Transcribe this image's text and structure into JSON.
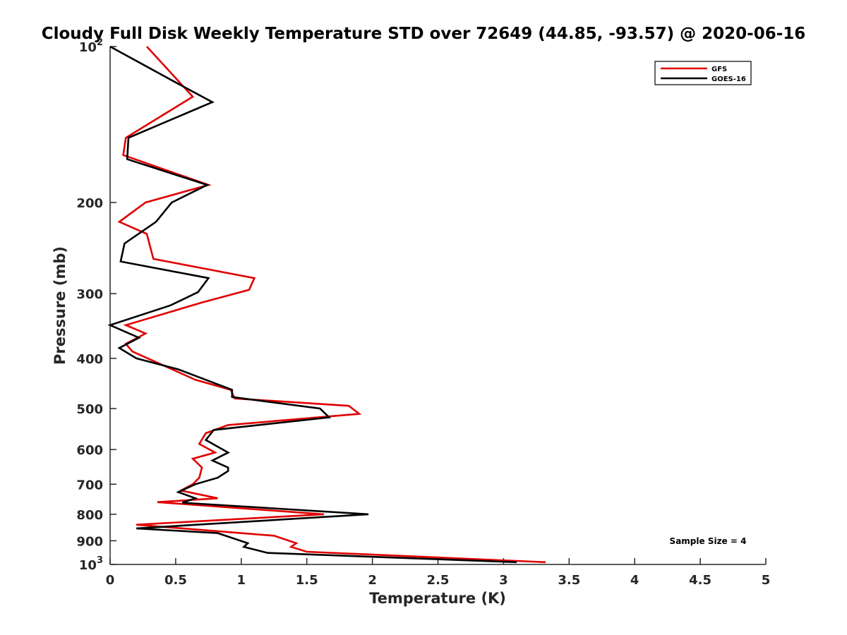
{
  "chart_data": {
    "type": "line",
    "title": "Cloudy Full Disk Weekly Temperature STD over 72649 (44.85, -93.57) @ 2020-06-16",
    "xlabel": "Temperature (K)",
    "ylabel": "Pressure (mb)",
    "xlim": [
      0,
      5
    ],
    "ylim": [
      100,
      1000
    ],
    "y_scale": "log",
    "y_reversed": true,
    "x_ticks": [
      "0",
      "0.5",
      "1",
      "1.5",
      "2",
      "2.5",
      "3",
      "3.5",
      "4",
      "4.5",
      "5"
    ],
    "y_ticks": [
      {
        "value": 100,
        "base": "10",
        "exp": "2"
      },
      {
        "value": 200,
        "label": "200"
      },
      {
        "value": 300,
        "label": "300"
      },
      {
        "value": 400,
        "label": "400"
      },
      {
        "value": 500,
        "label": "500"
      },
      {
        "value": 600,
        "label": "600"
      },
      {
        "value": 700,
        "label": "700"
      },
      {
        "value": 800,
        "label": "800"
      },
      {
        "value": 900,
        "label": "900"
      },
      {
        "value": 1000,
        "base": "10",
        "exp": "3"
      }
    ],
    "legend_position": "top-right",
    "annotation": "Sample Size = 4",
    "series": [
      {
        "name": "GFS",
        "color": "#e00000",
        "points": [
          [
            0.28,
            100
          ],
          [
            0.63,
            125
          ],
          [
            0.12,
            150
          ],
          [
            0.1,
            162
          ],
          [
            0.75,
            185
          ],
          [
            0.27,
            200
          ],
          [
            0.07,
            218
          ],
          [
            0.28,
            230
          ],
          [
            0.33,
            257
          ],
          [
            1.1,
            280
          ],
          [
            1.06,
            295
          ],
          [
            0.7,
            312
          ],
          [
            0.12,
            345
          ],
          [
            0.27,
            358
          ],
          [
            0.12,
            375
          ],
          [
            0.17,
            388
          ],
          [
            0.5,
            423
          ],
          [
            0.65,
            440
          ],
          [
            0.92,
            460
          ],
          [
            0.95,
            478
          ],
          [
            1.82,
            494
          ],
          [
            1.9,
            512
          ],
          [
            0.9,
            538
          ],
          [
            0.73,
            558
          ],
          [
            0.68,
            585
          ],
          [
            0.8,
            608
          ],
          [
            0.63,
            625
          ],
          [
            0.7,
            650
          ],
          [
            0.68,
            680
          ],
          [
            0.63,
            700
          ],
          [
            0.54,
            720
          ],
          [
            0.82,
            745
          ],
          [
            0.36,
            758
          ],
          [
            1.63,
            800
          ],
          [
            0.2,
            838
          ],
          [
            1.25,
            880
          ],
          [
            1.42,
            910
          ],
          [
            1.38,
            925
          ],
          [
            1.5,
            945
          ],
          [
            3.32,
            990
          ]
        ]
      },
      {
        "name": "GOES-16",
        "color": "#000000",
        "points": [
          [
            0.0,
            100
          ],
          [
            0.52,
            118
          ],
          [
            0.78,
            128
          ],
          [
            0.14,
            150
          ],
          [
            0.13,
            165
          ],
          [
            0.74,
            185
          ],
          [
            0.47,
            200
          ],
          [
            0.35,
            218
          ],
          [
            0.11,
            240
          ],
          [
            0.08,
            260
          ],
          [
            0.75,
            280
          ],
          [
            0.67,
            298
          ],
          [
            0.46,
            316
          ],
          [
            0.0,
            345
          ],
          [
            0.22,
            365
          ],
          [
            0.07,
            382
          ],
          [
            0.2,
            400
          ],
          [
            0.52,
            420
          ],
          [
            0.93,
            460
          ],
          [
            0.93,
            475
          ],
          [
            1.6,
            500
          ],
          [
            1.67,
            520
          ],
          [
            0.79,
            550
          ],
          [
            0.73,
            575
          ],
          [
            0.9,
            608
          ],
          [
            0.78,
            630
          ],
          [
            0.9,
            650
          ],
          [
            0.9,
            660
          ],
          [
            0.82,
            680
          ],
          [
            0.65,
            700
          ],
          [
            0.52,
            725
          ],
          [
            0.65,
            745
          ],
          [
            0.55,
            760
          ],
          [
            1.97,
            800
          ],
          [
            0.2,
            852
          ],
          [
            0.82,
            870
          ],
          [
            1.05,
            910
          ],
          [
            1.02,
            925
          ],
          [
            1.2,
            950
          ],
          [
            3.1,
            990
          ]
        ]
      }
    ]
  }
}
